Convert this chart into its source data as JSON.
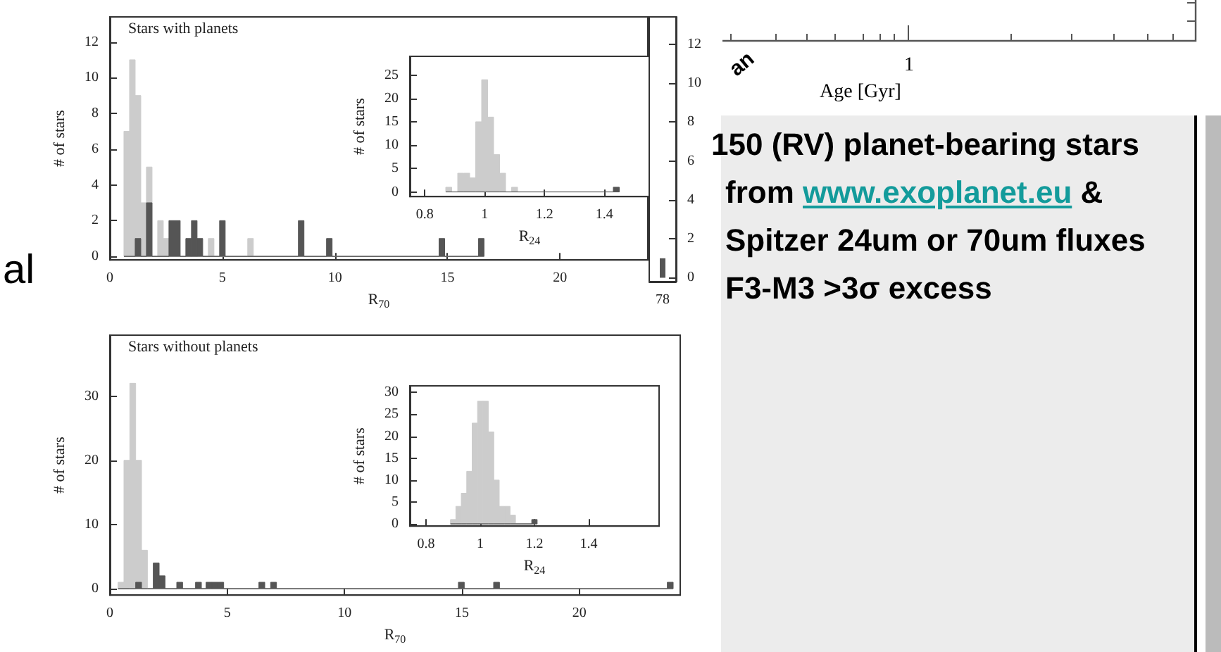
{
  "chart_data": [
    {
      "type": "histogram",
      "title": "Stars with planets",
      "xlabel": "R$_{70}$",
      "ylabel": "# of stars",
      "bins": [
        0.625,
        0.875,
        1.125,
        1.375,
        1.625,
        1.875,
        2.125,
        2.375,
        2.625,
        3.125,
        3.375,
        3.625,
        3.875,
        4.125,
        4.375,
        4.625,
        4.875,
        5.125,
        6.125,
        6.375,
        8.375,
        8.625,
        9.625,
        9.875,
        14.625,
        14.875,
        16.375,
        16.625
      ],
      "series": [
        {
          "color": "#cccccc",
          "values": [
            7,
            11,
            9,
            3,
            5,
            0,
            2,
            1,
            0,
            0,
            0,
            0,
            0,
            0,
            1,
            0,
            0,
            0,
            1,
            0,
            0,
            0,
            0,
            0,
            0,
            0,
            0
          ]
        },
        {
          "color": "#555555",
          "values": [
            0,
            0,
            1,
            0,
            3,
            0,
            0,
            0,
            2,
            0,
            1,
            2,
            1,
            0,
            0,
            0,
            2,
            0,
            0,
            0,
            2,
            0,
            1,
            0,
            1,
            0,
            1
          ]
        }
      ],
      "xlim": [
        0,
        23.9
      ],
      "xticks": [
        0,
        5,
        10,
        15,
        20
      ],
      "ylim": [
        -0.2,
        13.4
      ],
      "yticks": [
        0,
        2,
        4,
        6,
        8,
        10,
        12
      ],
      "grid": false
    },
    {
      "type": "bar",
      "categories": [
        "78"
      ],
      "values": [
        1
      ],
      "color": "#555555",
      "ylim": [
        -0.2,
        13.4
      ],
      "yticks": [
        0,
        2,
        4,
        6,
        8,
        10,
        12
      ],
      "grid": false
    },
    {
      "type": "histogram",
      "xlabel": "R$_{24}$",
      "ylabel": "# of stars",
      "bins": [
        0.87,
        0.89,
        0.91,
        0.93,
        0.95,
        0.97,
        0.99,
        1.01,
        1.03,
        1.05,
        1.07,
        1.09,
        1.11,
        1.43,
        1.45
      ],
      "series": [
        {
          "color": "#cccccc",
          "values": [
            1,
            0,
            4,
            4,
            3,
            15,
            24,
            16,
            8,
            4,
            0,
            1,
            0,
            0
          ]
        },
        {
          "color": "#555555",
          "values": [
            0,
            0,
            0,
            0,
            0,
            0,
            0,
            0,
            0,
            0,
            0,
            0,
            0,
            1
          ]
        }
      ],
      "xlim": [
        0.75,
        1.55
      ],
      "xticks": [
        0.8,
        1.0,
        1.2,
        1.4
      ],
      "ylim": [
        -1,
        29
      ],
      "yticks": [
        0,
        5,
        10,
        15,
        20,
        25
      ],
      "grid": false
    },
    {
      "type": "histogram",
      "title": "Stars without planets",
      "xlabel": "R$_{70}$",
      "ylabel": "# of stars",
      "bins": [
        0.35,
        0.6,
        0.85,
        1.1,
        1.35,
        1.6,
        1.85,
        2.1,
        2.35,
        2.85,
        3.1,
        3.65,
        3.9,
        4.1,
        4.35,
        4.6,
        4.85,
        6.35,
        6.6,
        6.85,
        7.1,
        14.85,
        15.1,
        16.35,
        16.6,
        23.75,
        24.0
      ],
      "series": [
        {
          "color": "#cccccc",
          "values": [
            1,
            20,
            32,
            20,
            6,
            0,
            0,
            0,
            0,
            0,
            0,
            0,
            0,
            0,
            0,
            0,
            0,
            0,
            0,
            0,
            0,
            0,
            0,
            0,
            0,
            0
          ]
        },
        {
          "color": "#555555",
          "values": [
            0,
            0,
            0,
            1,
            0,
            0,
            4,
            2,
            0,
            1,
            0,
            1,
            0,
            1,
            1,
            1,
            0,
            1,
            0,
            1,
            0,
            1,
            0,
            1,
            0,
            1
          ]
        }
      ],
      "xlim": [
        0,
        24.3
      ],
      "xticks": [
        0,
        5,
        10,
        15,
        20
      ],
      "ylim": [
        -1,
        39.5
      ],
      "yticks": [
        0,
        10,
        20,
        30
      ],
      "grid": false
    },
    {
      "type": "histogram",
      "xlabel": "R$_{24}$",
      "ylabel": "# of stars",
      "bins": [
        0.89,
        0.91,
        0.93,
        0.95,
        0.97,
        0.99,
        1.01,
        1.03,
        1.05,
        1.07,
        1.09,
        1.11,
        1.13,
        1.19,
        1.21
      ],
      "series": [
        {
          "color": "#cccccc",
          "values": [
            1,
            4,
            7,
            12,
            23,
            28,
            28,
            21,
            10,
            4,
            4,
            2,
            0,
            0
          ]
        },
        {
          "color": "#555555",
          "values": [
            0,
            0,
            0,
            0,
            0,
            0,
            0,
            0,
            0,
            0,
            0,
            0,
            0,
            1
          ]
        }
      ],
      "xlim": [
        0.74,
        1.66
      ],
      "xticks": [
        0.8,
        1.0,
        1.2,
        1.4
      ],
      "ylim": [
        -0.5,
        31.5
      ],
      "yticks": [
        0,
        5,
        10,
        15,
        20,
        25,
        30
      ],
      "grid": false
    },
    {
      "type": "other",
      "annotations": [
        "150 (RV) planet-bearing stars",
        "from",
        "www.exoplanet.eu",
        "&",
        "Spitzer 24um or 70um fluxes",
        "F3-M3 >3σ excess",
        "al",
        "an",
        "1",
        "Age [Gyr]"
      ]
    }
  ]
}
